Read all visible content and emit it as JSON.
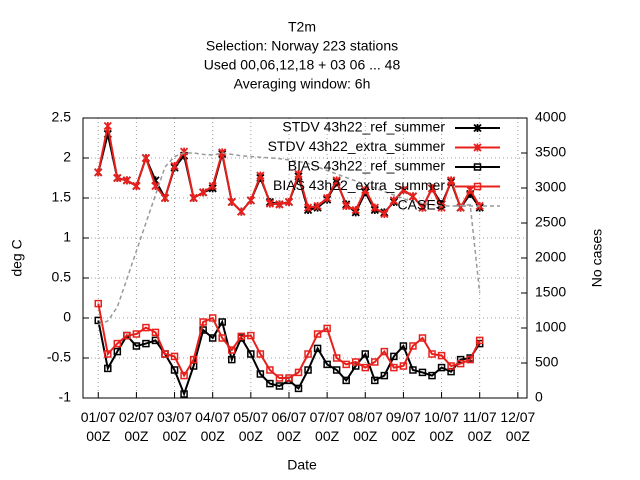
{
  "chart_data": {
    "type": "line",
    "title": "T2m",
    "subtitle": [
      "Selection: Norway    223 stations",
      "Used  00,06,12,18 + 03 06 ... 48",
      "Averaging window:  6h"
    ],
    "x_label": "Date",
    "y_label": "deg C",
    "y2_label": "No cases",
    "x": [
      1,
      1.25,
      1.5,
      1.75,
      2,
      2.25,
      2.5,
      2.75,
      3,
      3.25,
      3.5,
      3.75,
      4,
      4.25,
      4.5,
      4.75,
      5,
      5.25,
      5.5,
      5.75,
      6,
      6.25,
      6.5,
      6.75,
      7,
      7.25,
      7.5,
      7.75,
      8,
      8.25,
      8.5,
      8.75,
      9,
      9.25,
      9.5,
      9.75,
      10,
      10.25,
      10.5,
      10.75,
      11
    ],
    "xlim": [
      0.6,
      12.24
    ],
    "xticks": [
      {
        "value": 1,
        "label": "01/07 00Z"
      },
      {
        "value": 2,
        "label": "02/07 00Z"
      },
      {
        "value": 3,
        "label": "03/07 00Z"
      },
      {
        "value": 4,
        "label": "04/07 00Z"
      },
      {
        "value": 5,
        "label": "05/07 00Z"
      },
      {
        "value": 6,
        "label": "06/07 00Z"
      },
      {
        "value": 7,
        "label": "07/07 00Z"
      },
      {
        "value": 8,
        "label": "08/07 00Z"
      },
      {
        "value": 9,
        "label": "09/07 00Z"
      },
      {
        "value": 10,
        "label": "10/07 00Z"
      },
      {
        "value": 11,
        "label": "11/07 00Z"
      },
      {
        "value": 12,
        "label": "12/07 00Z"
      }
    ],
    "ylim": [
      -1,
      2.5
    ],
    "yticks": [
      -1,
      -0.5,
      0,
      0.5,
      1,
      1.5,
      2,
      2.5
    ],
    "y2lim": [
      0,
      4000
    ],
    "y2ticks": [
      0,
      500,
      1000,
      1500,
      2000,
      2500,
      3000,
      3500,
      4000
    ],
    "grid": true,
    "legend": "top-right",
    "series": [
      {
        "name": "STDV 43h22_ref_summer",
        "color": "#000000",
        "marker": "cross",
        "values": [
          1.82,
          2.3,
          1.75,
          1.72,
          1.65,
          2.0,
          1.72,
          1.5,
          1.88,
          2.03,
          1.5,
          1.57,
          1.62,
          2.05,
          1.45,
          1.33,
          1.47,
          1.75,
          1.45,
          1.42,
          1.45,
          1.77,
          1.35,
          1.38,
          1.48,
          1.7,
          1.42,
          1.32,
          1.57,
          1.35,
          1.32,
          1.45,
          1.6,
          1.52,
          1.38,
          1.62,
          1.42,
          1.7,
          1.38,
          1.55,
          1.38
        ]
      },
      {
        "name": "STDV 43h22_extra_summer",
        "color": "#e8201c",
        "marker": "cross",
        "values": [
          1.82,
          2.4,
          1.75,
          1.72,
          1.65,
          2.0,
          1.65,
          1.5,
          1.9,
          2.08,
          1.5,
          1.57,
          1.65,
          2.07,
          1.45,
          1.33,
          1.47,
          1.78,
          1.43,
          1.42,
          1.45,
          1.8,
          1.38,
          1.4,
          1.5,
          1.72,
          1.4,
          1.35,
          1.6,
          1.38,
          1.3,
          1.47,
          1.6,
          1.52,
          1.38,
          1.62,
          1.38,
          1.72,
          1.38,
          1.6,
          1.4
        ]
      },
      {
        "name": "BIAS 43h22_ref_summer",
        "color": "#000000",
        "marker": "square",
        "values": [
          -0.03,
          -0.63,
          -0.42,
          -0.22,
          -0.35,
          -0.32,
          -0.28,
          -0.45,
          -0.65,
          -0.95,
          -0.6,
          -0.15,
          -0.25,
          -0.05,
          -0.52,
          -0.25,
          -0.45,
          -0.7,
          -0.82,
          -0.85,
          -0.78,
          -0.88,
          -0.65,
          -0.38,
          -0.58,
          -0.65,
          -0.78,
          -0.6,
          -0.45,
          -0.78,
          -0.72,
          -0.48,
          -0.35,
          -0.65,
          -0.68,
          -0.72,
          -0.62,
          -0.67,
          -0.52,
          -0.5,
          -0.32
        ]
      },
      {
        "name": "BIAS 43h22_extra_summer",
        "color": "#e8201c",
        "marker": "square",
        "values": [
          0.18,
          -0.45,
          -0.32,
          -0.22,
          -0.2,
          -0.12,
          -0.18,
          -0.45,
          -0.48,
          -0.72,
          -0.52,
          -0.05,
          0.0,
          -0.25,
          -0.4,
          -0.23,
          -0.22,
          -0.45,
          -0.65,
          -0.75,
          -0.75,
          -0.68,
          -0.45,
          -0.2,
          -0.13,
          -0.5,
          -0.58,
          -0.55,
          -0.62,
          -0.55,
          -0.42,
          -0.62,
          -0.6,
          -0.35,
          -0.25,
          -0.45,
          -0.47,
          -0.6,
          -0.57,
          -0.52,
          -0.28
        ]
      },
      {
        "name": "CASES",
        "color": "#999999",
        "axis": "y2",
        "dashed": true,
        "values": [
          1050,
          1100,
          1300,
          1700,
          2100,
          2500,
          2900,
          3300,
          3450,
          3500,
          3500,
          3480,
          3470,
          3500,
          3480,
          3460,
          3450,
          3440,
          3430,
          3420,
          3400,
          3380,
          3350,
          3300,
          3250,
          3200,
          3150,
          3100,
          3050,
          3000,
          2950,
          2900,
          2850,
          2800,
          2780,
          2760,
          2750,
          2740,
          2750,
          2760,
          1500
        ]
      }
    ]
  }
}
